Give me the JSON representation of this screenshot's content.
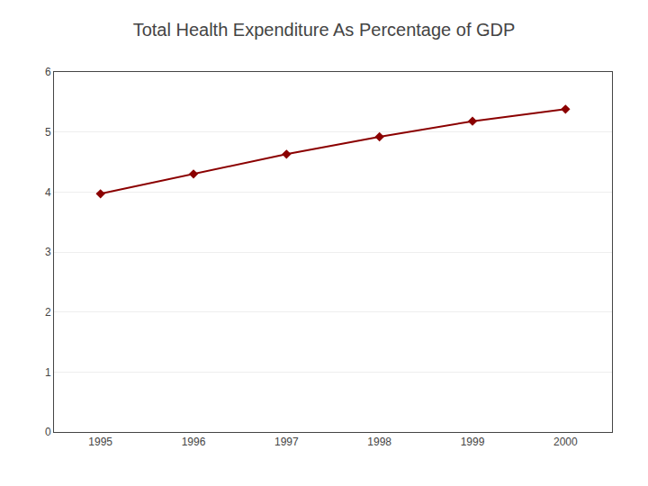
{
  "chart_data": {
    "type": "line",
    "title": "Total Health Expenditure As Percentage of GDP",
    "x": [
      1995,
      1996,
      1997,
      1998,
      1999,
      2000
    ],
    "values": [
      3.97,
      4.3,
      4.63,
      4.92,
      5.18,
      5.38
    ],
    "color": "#8b0000",
    "marker": "diamond",
    "xlim": [
      1994.5,
      2000.5
    ],
    "xticks": [
      1995,
      1996,
      1997,
      1998,
      1999,
      2000
    ],
    "ylim": [
      0,
      6
    ],
    "yticks": [
      0,
      1,
      2,
      3,
      4,
      5,
      6
    ],
    "grid": true
  }
}
